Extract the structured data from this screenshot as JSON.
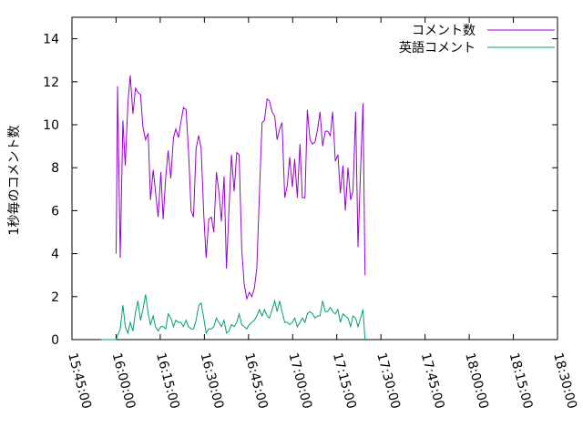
{
  "chart_data": {
    "type": "line",
    "title": "",
    "xlabel": "",
    "ylabel": "1秒毎のコメント数",
    "xlim_min": [
      945,
      1110
    ],
    "ylim": [
      0,
      15
    ],
    "grid": false,
    "legend_position": "top-right",
    "x_ticks": [
      {
        "min": 945,
        "label": "15:45:00"
      },
      {
        "min": 960,
        "label": "16:00:00"
      },
      {
        "min": 975,
        "label": "16:15:00"
      },
      {
        "min": 990,
        "label": "16:30:00"
      },
      {
        "min": 1005,
        "label": "16:45:00"
      },
      {
        "min": 1020,
        "label": "17:00:00"
      },
      {
        "min": 1035,
        "label": "17:15:00"
      },
      {
        "min": 1050,
        "label": "17:30:00"
      },
      {
        "min": 1065,
        "label": "17:45:00"
      },
      {
        "min": 1080,
        "label": "18:00:00"
      },
      {
        "min": 1095,
        "label": "18:15:00"
      },
      {
        "min": 1110,
        "label": "18:30:00"
      }
    ],
    "y_ticks": [
      {
        "value": 0,
        "label": "0"
      },
      {
        "value": 2,
        "label": "2"
      },
      {
        "value": 4,
        "label": "4"
      },
      {
        "value": 6,
        "label": "6"
      },
      {
        "value": 8,
        "label": "8"
      },
      {
        "value": 10,
        "label": "10"
      },
      {
        "value": 12,
        "label": "12"
      },
      {
        "value": 14,
        "label": "14"
      }
    ],
    "series": [
      {
        "name": "コメント数",
        "color": "#9400d3",
        "points": [
          [
            960.0,
            4.0
          ],
          [
            960.5,
            11.8
          ],
          [
            961.4,
            3.8
          ],
          [
            962.3,
            10.2
          ],
          [
            963.1,
            8.1
          ],
          [
            964.0,
            11.0
          ],
          [
            964.8,
            12.3
          ],
          [
            965.7,
            10.5
          ],
          [
            966.6,
            11.7
          ],
          [
            967.4,
            11.5
          ],
          [
            968.3,
            11.4
          ],
          [
            969.1,
            9.9
          ],
          [
            970.0,
            9.3
          ],
          [
            970.9,
            9.6
          ],
          [
            971.7,
            6.5
          ],
          [
            972.6,
            7.9
          ],
          [
            973.4,
            6.9
          ],
          [
            974.3,
            5.7
          ],
          [
            975.2,
            7.8
          ],
          [
            976.0,
            5.6
          ],
          [
            976.9,
            7.6
          ],
          [
            977.7,
            8.8
          ],
          [
            978.6,
            7.5
          ],
          [
            979.5,
            9.4
          ],
          [
            980.3,
            9.8
          ],
          [
            981.2,
            9.4
          ],
          [
            982.0,
            10.1
          ],
          [
            982.9,
            10.8
          ],
          [
            983.8,
            10.7
          ],
          [
            984.6,
            8.8
          ],
          [
            985.5,
            6.0
          ],
          [
            986.3,
            5.7
          ],
          [
            987.2,
            8.9
          ],
          [
            988.1,
            9.5
          ],
          [
            988.9,
            8.9
          ],
          [
            989.8,
            5.8
          ],
          [
            990.6,
            3.8
          ],
          [
            991.5,
            5.6
          ],
          [
            992.4,
            5.7
          ],
          [
            993.2,
            5.0
          ],
          [
            994.1,
            7.8
          ],
          [
            994.9,
            6.9
          ],
          [
            995.8,
            5.5
          ],
          [
            996.7,
            7.6
          ],
          [
            997.5,
            3.3
          ],
          [
            998.4,
            6.2
          ],
          [
            999.2,
            8.6
          ],
          [
            1000.1,
            6.9
          ],
          [
            1001.0,
            8.7
          ],
          [
            1001.8,
            8.6
          ],
          [
            1002.7,
            4.2
          ],
          [
            1003.5,
            2.6
          ],
          [
            1004.4,
            1.9
          ],
          [
            1005.3,
            2.2
          ],
          [
            1006.1,
            2.0
          ],
          [
            1007.0,
            2.4
          ],
          [
            1007.8,
            3.3
          ],
          [
            1008.7,
            6.8
          ],
          [
            1009.6,
            10.1
          ],
          [
            1010.4,
            10.2
          ],
          [
            1011.3,
            11.2
          ],
          [
            1012.1,
            11.1
          ],
          [
            1013.0,
            10.6
          ],
          [
            1013.9,
            10.4
          ],
          [
            1014.7,
            9.3
          ],
          [
            1015.6,
            9.8
          ],
          [
            1016.4,
            10.1
          ],
          [
            1017.3,
            6.6
          ],
          [
            1018.2,
            7.2
          ],
          [
            1019.0,
            8.5
          ],
          [
            1019.9,
            7.1
          ],
          [
            1020.7,
            8.4
          ],
          [
            1021.6,
            6.6
          ],
          [
            1022.5,
            9.1
          ],
          [
            1023.3,
            6.6
          ],
          [
            1024.2,
            6.6
          ],
          [
            1025.0,
            10.7
          ],
          [
            1025.9,
            9.3
          ],
          [
            1026.8,
            9.1
          ],
          [
            1027.6,
            9.2
          ],
          [
            1028.5,
            9.8
          ],
          [
            1029.3,
            10.6
          ],
          [
            1030.2,
            9.0
          ],
          [
            1031.1,
            9.7
          ],
          [
            1031.9,
            9.7
          ],
          [
            1032.8,
            9.5
          ],
          [
            1033.6,
            10.6
          ],
          [
            1034.5,
            8.3
          ],
          [
            1035.4,
            8.6
          ],
          [
            1036.2,
            6.8
          ],
          [
            1037.1,
            8.1
          ],
          [
            1037.9,
            6.0
          ],
          [
            1038.8,
            8.0
          ],
          [
            1039.7,
            6.5
          ],
          [
            1040.5,
            6.9
          ],
          [
            1041.4,
            10.6
          ],
          [
            1042.2,
            4.3
          ],
          [
            1043.1,
            8.0
          ],
          [
            1043.9,
            11.0
          ],
          [
            1044.6,
            3.0
          ]
        ]
      },
      {
        "name": "英語コメント",
        "color": "#009e73",
        "points": [
          [
            955.0,
            0.0
          ],
          [
            960.0,
            0.0
          ],
          [
            960.5,
            0.2
          ],
          [
            961.4,
            0.5
          ],
          [
            962.3,
            1.6
          ],
          [
            963.1,
            0.6
          ],
          [
            964.0,
            0.3
          ],
          [
            964.8,
            0.8
          ],
          [
            965.7,
            0.4
          ],
          [
            966.6,
            1.3
          ],
          [
            967.4,
            1.8
          ],
          [
            968.3,
            0.9
          ],
          [
            969.1,
            1.4
          ],
          [
            970.0,
            2.1
          ],
          [
            970.9,
            1.2
          ],
          [
            971.7,
            0.7
          ],
          [
            972.6,
            1.1
          ],
          [
            973.4,
            0.6
          ],
          [
            974.3,
            0.4
          ],
          [
            975.2,
            0.6
          ],
          [
            976.0,
            0.6
          ],
          [
            976.9,
            0.5
          ],
          [
            977.7,
            1.2
          ],
          [
            978.6,
            1.0
          ],
          [
            979.5,
            0.6
          ],
          [
            980.3,
            0.9
          ],
          [
            981.2,
            0.8
          ],
          [
            982.0,
            0.8
          ],
          [
            982.9,
            0.6
          ],
          [
            983.8,
            0.9
          ],
          [
            984.6,
            0.6
          ],
          [
            985.5,
            0.5
          ],
          [
            986.3,
            0.5
          ],
          [
            987.2,
            0.9
          ],
          [
            988.1,
            1.6
          ],
          [
            988.9,
            1.7
          ],
          [
            989.8,
            1.0
          ],
          [
            990.6,
            0.3
          ],
          [
            991.5,
            0.5
          ],
          [
            992.4,
            0.5
          ],
          [
            993.2,
            0.6
          ],
          [
            994.1,
            1.0
          ],
          [
            994.9,
            0.8
          ],
          [
            995.8,
            0.6
          ],
          [
            996.7,
            0.9
          ],
          [
            997.5,
            0.3
          ],
          [
            998.4,
            0.4
          ],
          [
            999.2,
            0.7
          ],
          [
            1000.1,
            0.6
          ],
          [
            1001.0,
            0.8
          ],
          [
            1001.8,
            1.2
          ],
          [
            1002.7,
            0.7
          ],
          [
            1003.5,
            0.6
          ],
          [
            1004.4,
            0.5
          ],
          [
            1005.3,
            0.7
          ],
          [
            1006.1,
            0.8
          ],
          [
            1007.0,
            0.9
          ],
          [
            1007.8,
            1.1
          ],
          [
            1008.7,
            1.4
          ],
          [
            1009.6,
            1.1
          ],
          [
            1010.4,
            1.4
          ],
          [
            1011.3,
            1.1
          ],
          [
            1012.1,
            1.0
          ],
          [
            1013.0,
            1.4
          ],
          [
            1013.9,
            1.8
          ],
          [
            1014.7,
            1.3
          ],
          [
            1015.6,
            1.8
          ],
          [
            1016.4,
            1.3
          ],
          [
            1017.3,
            0.8
          ],
          [
            1018.2,
            0.8
          ],
          [
            1019.0,
            0.7
          ],
          [
            1019.9,
            0.8
          ],
          [
            1020.7,
            1.0
          ],
          [
            1021.6,
            0.6
          ],
          [
            1022.5,
            0.8
          ],
          [
            1023.3,
            1.0
          ],
          [
            1024.2,
            0.8
          ],
          [
            1025.0,
            1.2
          ],
          [
            1025.9,
            1.3
          ],
          [
            1026.8,
            1.2
          ],
          [
            1027.6,
            1.0
          ],
          [
            1028.5,
            1.1
          ],
          [
            1029.3,
            1.1
          ],
          [
            1030.2,
            1.8
          ],
          [
            1031.1,
            1.3
          ],
          [
            1031.9,
            1.3
          ],
          [
            1032.8,
            1.5
          ],
          [
            1033.6,
            1.3
          ],
          [
            1034.5,
            1.2
          ],
          [
            1035.4,
            1.4
          ],
          [
            1036.2,
            0.8
          ],
          [
            1037.1,
            1.2
          ],
          [
            1037.9,
            1.1
          ],
          [
            1038.8,
            1.0
          ],
          [
            1039.7,
            0.6
          ],
          [
            1040.5,
            1.1
          ],
          [
            1041.4,
            1.0
          ],
          [
            1042.2,
            0.6
          ],
          [
            1043.1,
            1.0
          ],
          [
            1043.9,
            1.4
          ],
          [
            1044.6,
            0.0
          ]
        ]
      }
    ]
  }
}
